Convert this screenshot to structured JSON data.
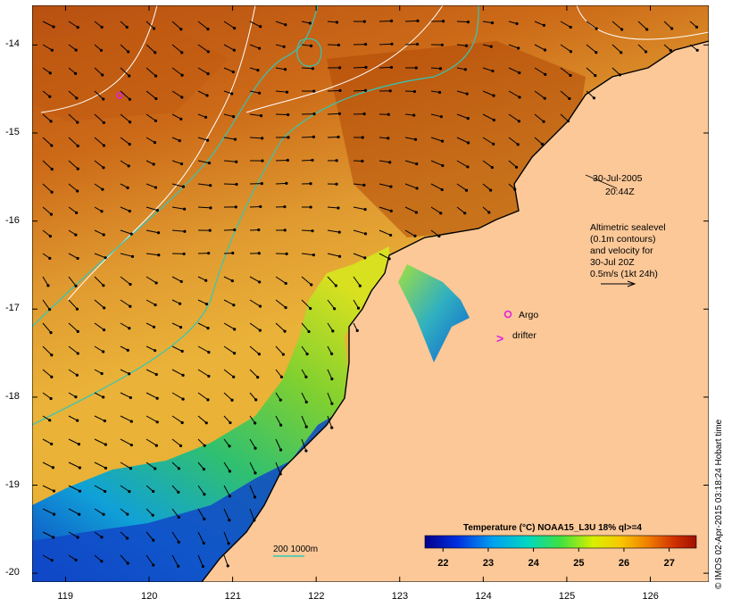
{
  "map": {
    "lon_ticks": [
      "119",
      "120",
      "121",
      "122",
      "123",
      "124",
      "125",
      "126"
    ],
    "lat_ticks": [
      "-14",
      "-15",
      "-16",
      "-17",
      "-18",
      "-19",
      "-20"
    ],
    "lon_range": [
      118.6,
      126.7
    ],
    "lat_range": [
      -20.1,
      -13.55
    ],
    "date": "30-Jul-2005",
    "time": "20:44Z",
    "altimetry_note": [
      "Altimetric sealevel",
      "(0.1m contours)",
      "and velocity for",
      "30-Jul 20Z",
      "0.5m/s (1kt 24h)"
    ],
    "legend_argo": "Argo",
    "legend_drifter": "drifter",
    "legend_drifter_glyph": ">",
    "isobath_label": "200  1000m",
    "colorbar_title": "Temperature (°C) NOAA15_L3U 18% ql>=4",
    "colorbar_ticks": [
      "22",
      "23",
      "24",
      "25",
      "26",
      "27"
    ],
    "colorbar_range": [
      21.6,
      27.6
    ],
    "credit": "© IMOS 02-Apr-2015 03:18:24 Hobart time",
    "colors": {
      "land": "#fcc898",
      "sea_warm": "#c86010",
      "sea_mid": "#e8a030",
      "sea_cool": "#20a8d8",
      "isobath": "#30c8b8",
      "argo": "#e020e0",
      "contour": "#ffffff"
    }
  }
}
